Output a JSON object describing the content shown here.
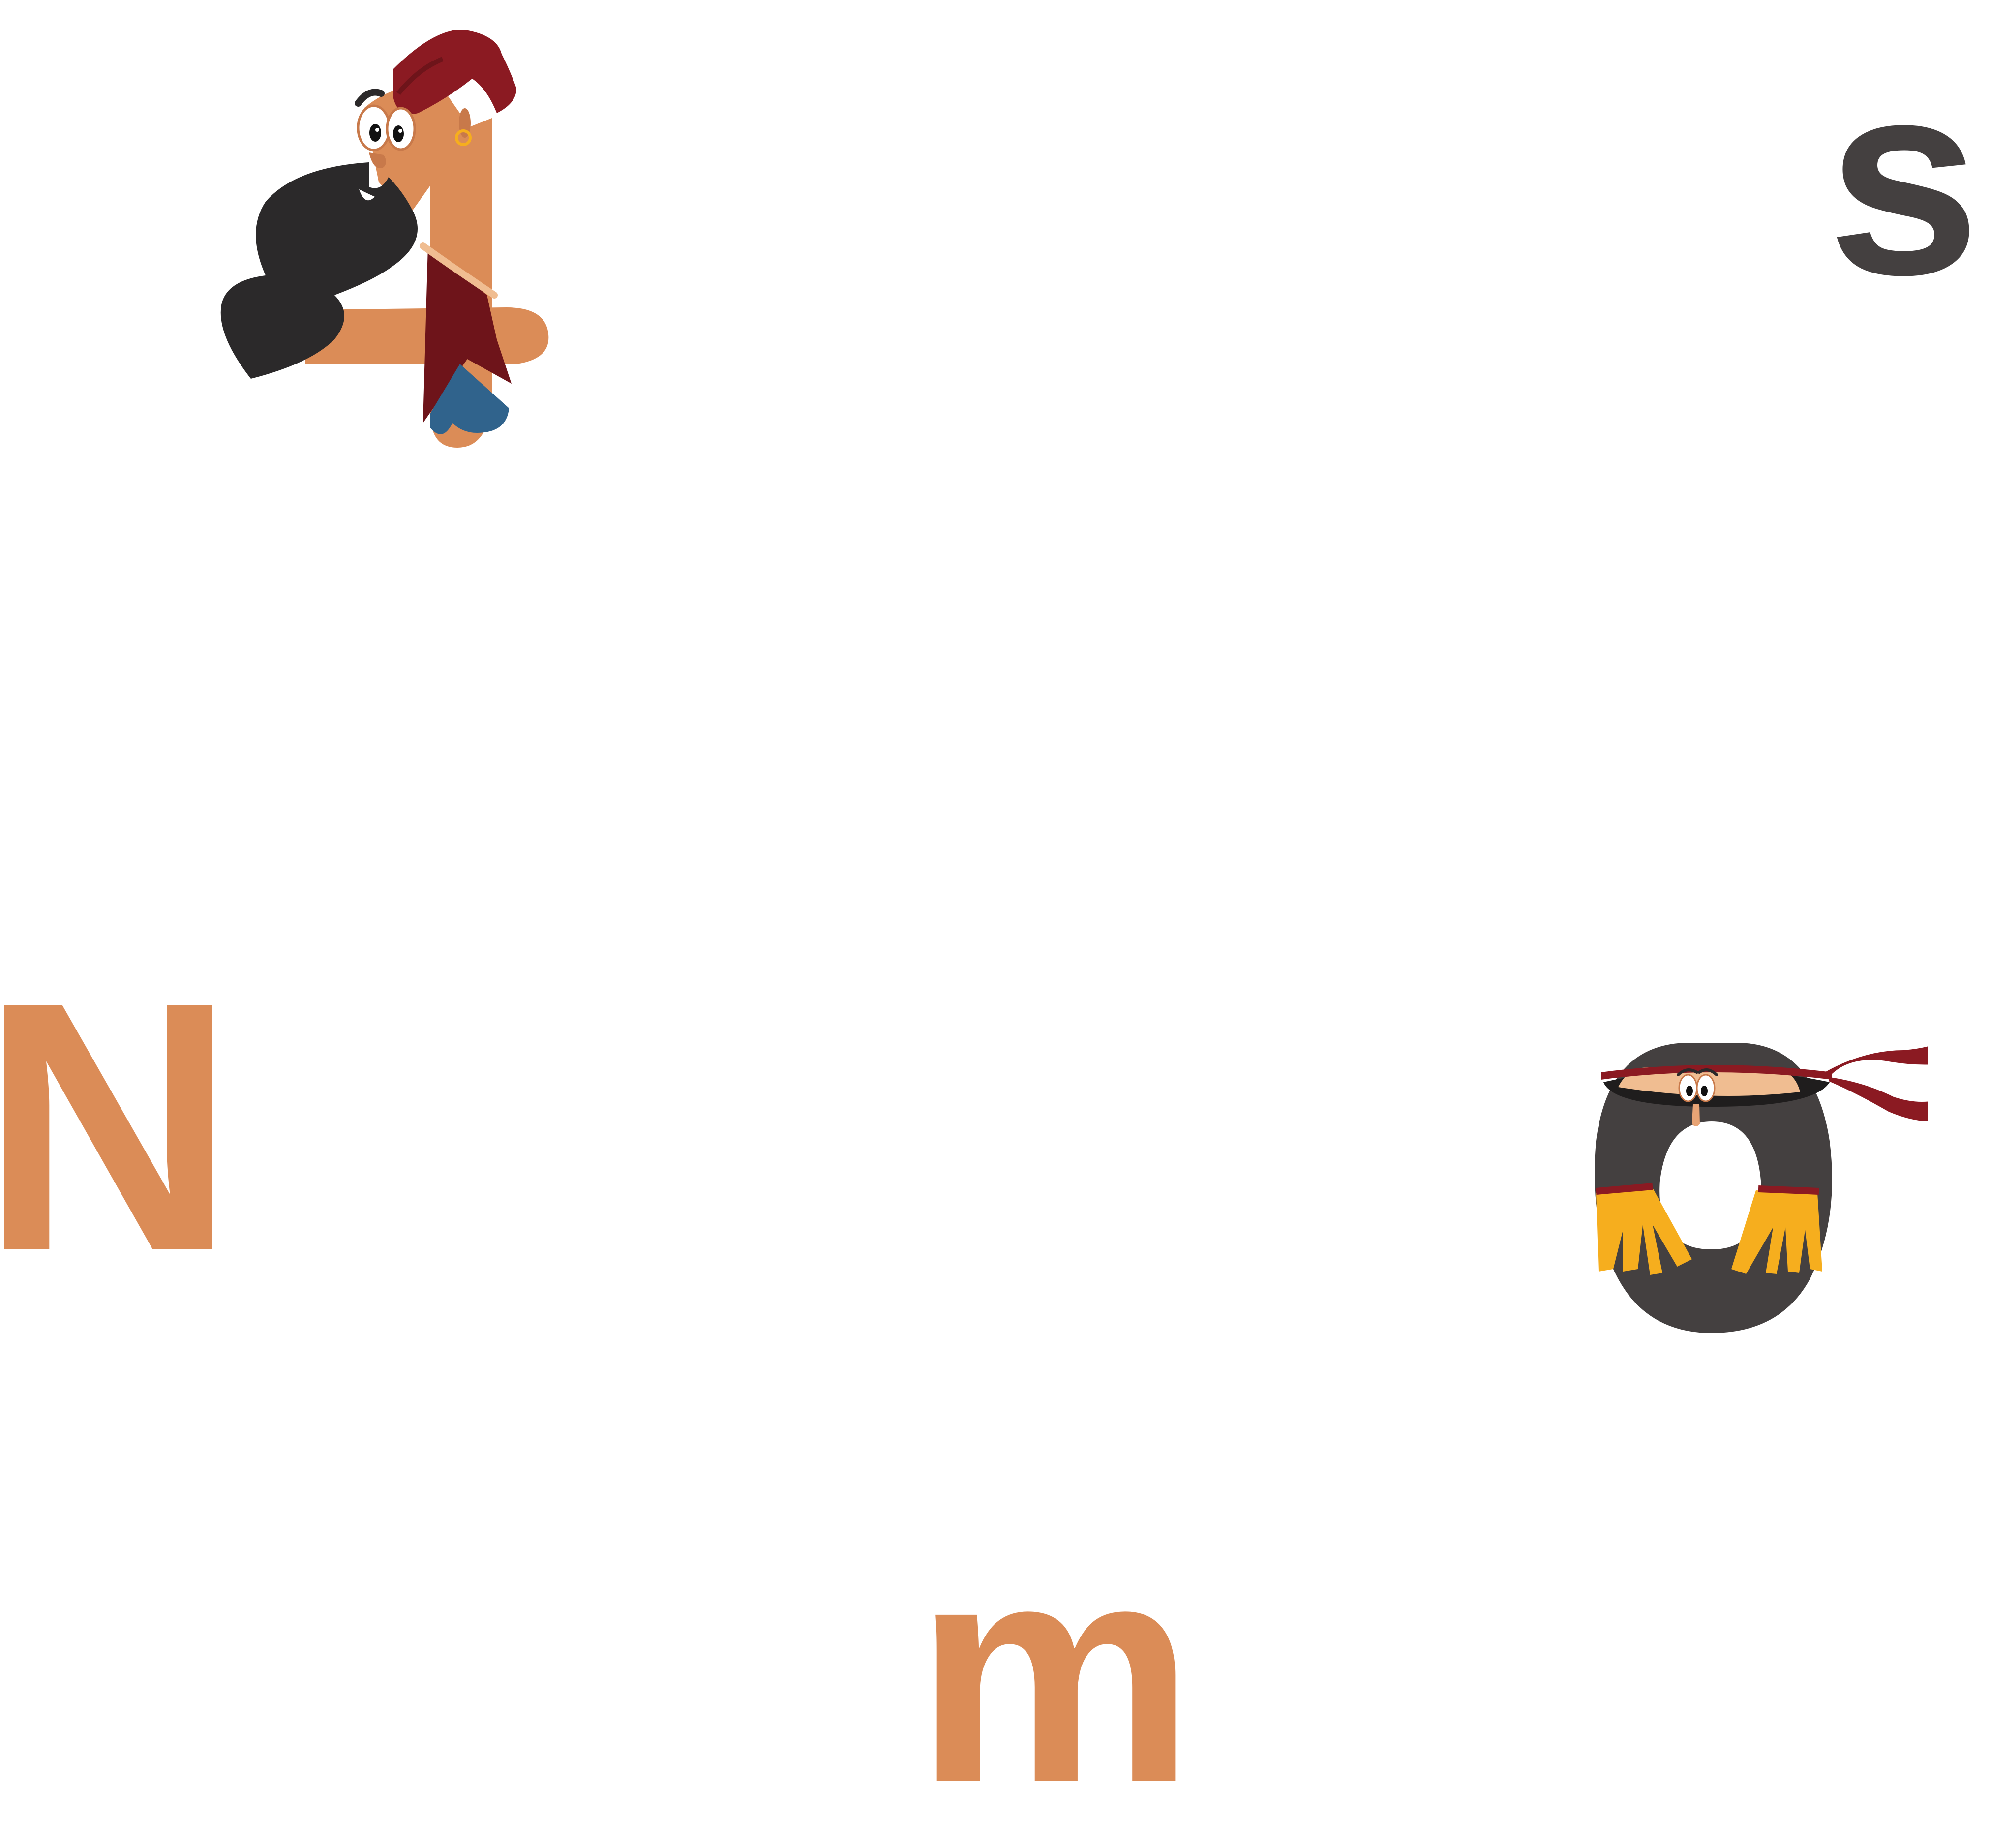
{
  "letters": {
    "s": "s",
    "n": "N",
    "m": "m"
  },
  "characters": {
    "number_figure": {
      "glyph": "4",
      "icon": "bearded-turban-man-number-four"
    },
    "letter_figure": {
      "glyph": "o",
      "icon": "ninja-headband-letter-o"
    }
  },
  "colors": {
    "background": "#ffffff",
    "orange": "#DB8C57",
    "dark_gray": "#444040",
    "maroon": "#8B1A22",
    "beard_black": "#2B292A",
    "blue": "#30638C",
    "yellow": "#F6AE1E",
    "skin": "#F0BD91"
  }
}
